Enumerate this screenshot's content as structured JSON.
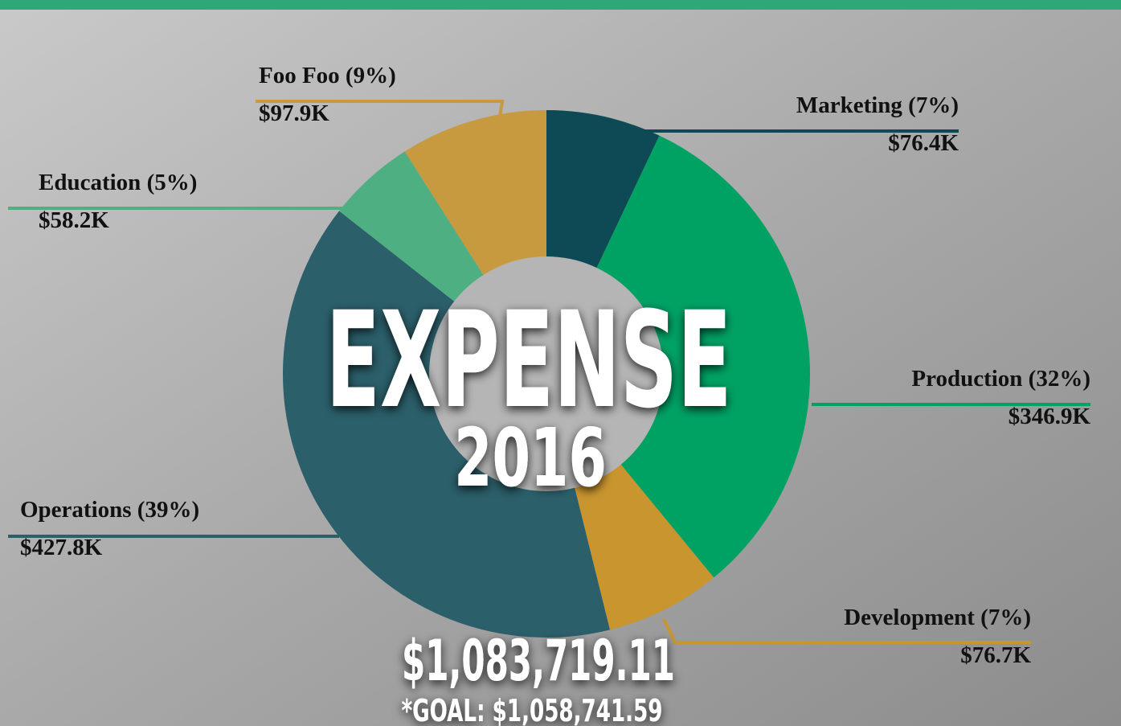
{
  "chart_data": {
    "type": "donut",
    "title": "EXPENSE",
    "subtitle": "2016",
    "annotations": [
      "$1,083,719.11",
      "*GOAL: $1,058,741.59"
    ],
    "categories": [
      "Marketing (7%)",
      "Production (32%)",
      "Development (7%)",
      "Operations (39%)",
      "Education (5%)",
      "Foo Foo (9%)"
    ],
    "values": [
      76400,
      346900,
      76700,
      427800,
      58200,
      97900
    ],
    "value_labels": [
      "$76.4K",
      "$346.9K",
      "$76.7K",
      "$427.8K",
      "$58.2K",
      "$97.9K"
    ],
    "colors": [
      "#0d4a55",
      "#00a264",
      "#c9952f",
      "#2b5f6a",
      "#4daf82",
      "#c79a40"
    ]
  }
}
